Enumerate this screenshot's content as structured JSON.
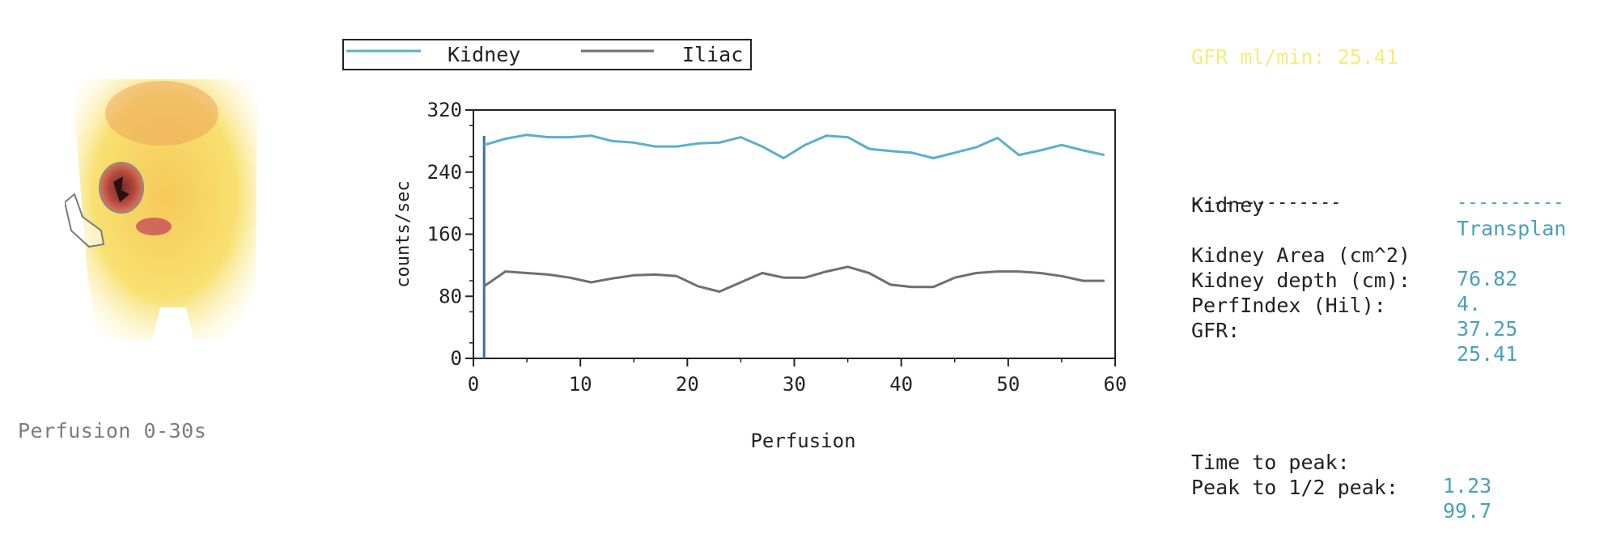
{
  "scan": {
    "caption": "Perfusion 0-30s",
    "colors": {
      "background": "#f9e36a",
      "organ": "#b2473d",
      "roi": "#8a8a8a"
    }
  },
  "gfr_top": "GFR ml/min: 25.41",
  "stats": {
    "header_label": "Kidney",
    "header_value": "Transplan",
    "rows": [
      {
        "label": "Kidney Area (cm^2)",
        "value": "76.82"
      },
      {
        "label": "Kidney depth (cm):",
        "value": "4."
      },
      {
        "label": "PerfIndex (Hil):",
        "value": "37.25"
      },
      {
        "label": "GFR:",
        "value": "25.41"
      }
    ],
    "time_rows": [
      {
        "label": "Time to peak:",
        "value": "1.23"
      },
      {
        "label": "Peak to 1/2 peak:",
        "value": "99.7"
      }
    ]
  },
  "chart_data": {
    "type": "line",
    "title": "",
    "xlabel": "Perfusion",
    "ylabel": "counts/sec",
    "xlim": [
      0,
      60
    ],
    "ylim": [
      0,
      320
    ],
    "xticks": [
      0,
      10,
      20,
      30,
      40,
      50,
      60
    ],
    "yticks": [
      0,
      80,
      160,
      240,
      320
    ],
    "grid": false,
    "legend_position": "top",
    "marker_x": 1,
    "series": [
      {
        "name": "Kidney",
        "color": "#5ab0c8",
        "x": [
          1,
          3,
          5,
          7,
          9,
          11,
          13,
          15,
          17,
          19,
          21,
          23,
          25,
          27,
          29,
          31,
          33,
          35,
          37,
          39,
          41,
          43,
          45,
          47,
          49,
          51,
          53,
          55,
          57,
          59
        ],
        "y": [
          275,
          283,
          288,
          285,
          285,
          287,
          280,
          278,
          273,
          273,
          277,
          278,
          285,
          273,
          258,
          275,
          287,
          285,
          270,
          267,
          265,
          258,
          265,
          272,
          284,
          262,
          268,
          275,
          268,
          262
        ]
      },
      {
        "name": "Iliac",
        "color": "#6f6f6f",
        "x": [
          1,
          3,
          5,
          7,
          9,
          11,
          13,
          15,
          17,
          19,
          21,
          23,
          25,
          27,
          29,
          31,
          33,
          35,
          37,
          39,
          41,
          43,
          45,
          47,
          49,
          51,
          53,
          55,
          57,
          59
        ],
        "y": [
          93,
          112,
          110,
          108,
          104,
          98,
          103,
          107,
          108,
          106,
          93,
          86,
          98,
          110,
          104,
          104,
          112,
          118,
          110,
          95,
          92,
          92,
          104,
          110,
          112,
          112,
          110,
          106,
          100,
          100
        ]
      }
    ]
  }
}
